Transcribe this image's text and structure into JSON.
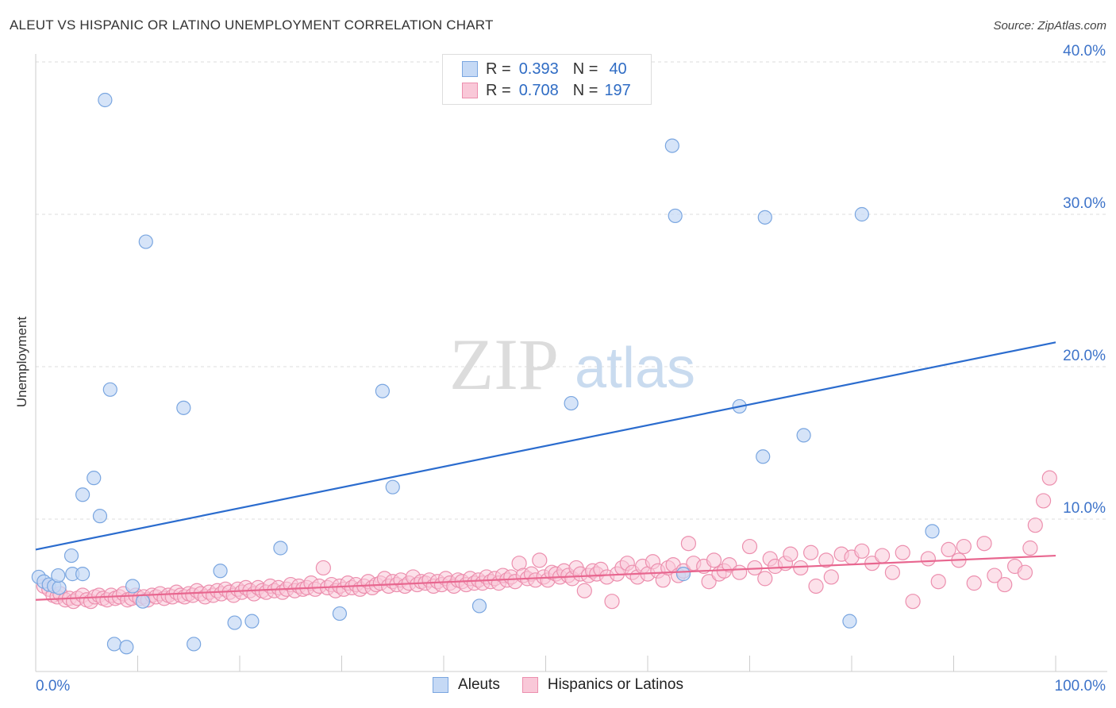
{
  "header": {
    "title": "ALEUT VS HISPANIC OR LATINO UNEMPLOYMENT CORRELATION CHART",
    "source": "Source: ZipAtlas.com"
  },
  "watermark": {
    "zip": "ZIP",
    "atlas": "atlas"
  },
  "legend": {
    "rows": [
      {
        "r_label": "R =",
        "r_value": "0.393",
        "n_label": "N =",
        "n_value": "40"
      },
      {
        "r_label": "R =",
        "r_value": "0.708",
        "n_label": "N =",
        "n_value": "197"
      }
    ]
  },
  "bottom_legend": [
    "Aleuts",
    "Hispanics or Latinos"
  ],
  "colors": {
    "blue_fill": "#c5d9f5",
    "blue_stroke": "#7aa6e0",
    "blue_line": "#2b6cce",
    "pink_fill": "#f9c8d8",
    "pink_stroke": "#ec8fae",
    "pink_line": "#e8668f",
    "axis_text": "#3d73c9",
    "grid": "#dddddd"
  },
  "chart_data": {
    "type": "scatter",
    "title": "ALEUT VS HISPANIC OR LATINO UNEMPLOYMENT CORRELATION CHART",
    "ylabel": "Unemployment",
    "xlabel": "",
    "xlim": [
      0,
      100
    ],
    "ylim": [
      0,
      40
    ],
    "x_tick_labels": [
      "0.0%",
      "100.0%"
    ],
    "y_ticks": [
      10,
      20,
      30,
      40
    ],
    "y_tick_labels": [
      "10.0%",
      "20.0%",
      "30.0%",
      "40.0%"
    ],
    "grid": true,
    "series": [
      {
        "name": "Aleuts",
        "r": 0.393,
        "n": 40,
        "trend": [
          [
            0,
            8.0
          ],
          [
            100,
            21.6
          ]
        ],
        "points": [
          [
            0.3,
            6.2
          ],
          [
            0.8,
            5.9
          ],
          [
            1.3,
            5.7
          ],
          [
            1.8,
            5.6
          ],
          [
            2.3,
            5.5
          ],
          [
            2.2,
            6.3
          ],
          [
            3.5,
            7.6
          ],
          [
            3.6,
            6.4
          ],
          [
            4.6,
            6.4
          ],
          [
            4.6,
            11.6
          ],
          [
            5.7,
            12.7
          ],
          [
            6.3,
            10.2
          ],
          [
            6.8,
            37.5
          ],
          [
            7.3,
            18.5
          ],
          [
            7.7,
            1.8
          ],
          [
            8.9,
            1.6
          ],
          [
            9.5,
            5.6
          ],
          [
            10.5,
            4.6
          ],
          [
            10.8,
            28.2
          ],
          [
            14.5,
            17.3
          ],
          [
            15.5,
            1.8
          ],
          [
            18.1,
            6.6
          ],
          [
            19.5,
            3.2
          ],
          [
            21.2,
            3.3
          ],
          [
            24.0,
            8.1
          ],
          [
            29.8,
            3.8
          ],
          [
            34.0,
            18.4
          ],
          [
            35.0,
            12.1
          ],
          [
            43.5,
            4.3
          ],
          [
            52.5,
            17.6
          ],
          [
            63.5,
            6.4
          ],
          [
            62.4,
            34.5
          ],
          [
            62.7,
            29.9
          ],
          [
            69.0,
            17.4
          ],
          [
            71.3,
            14.1
          ],
          [
            71.5,
            29.8
          ],
          [
            75.3,
            15.5
          ],
          [
            81.0,
            30.0
          ],
          [
            79.8,
            3.3
          ],
          [
            87.9,
            9.2
          ]
        ]
      },
      {
        "name": "Hispanics or Latinos",
        "r": 0.708,
        "n": 197,
        "trend": [
          [
            0,
            4.7
          ],
          [
            100,
            7.6
          ]
        ],
        "points": [
          [
            0.8,
            5.6
          ],
          [
            1.3,
            5.4
          ],
          [
            1.7,
            5.0
          ],
          [
            2.1,
            4.9
          ],
          [
            2.4,
            5.1
          ],
          [
            2.9,
            4.7
          ],
          [
            3.3,
            4.8
          ],
          [
            3.7,
            4.6
          ],
          [
            4.1,
            4.8
          ],
          [
            4.6,
            5.0
          ],
          [
            5.0,
            4.7
          ],
          [
            5.4,
            4.6
          ],
          [
            5.8,
            4.9
          ],
          [
            6.2,
            5.0
          ],
          [
            6.6,
            4.8
          ],
          [
            7.0,
            4.7
          ],
          [
            7.4,
            5.0
          ],
          [
            7.8,
            4.8
          ],
          [
            8.2,
            4.9
          ],
          [
            8.6,
            5.1
          ],
          [
            9.0,
            4.7
          ],
          [
            9.4,
            4.8
          ],
          [
            9.8,
            5.0
          ],
          [
            10.2,
            4.8
          ],
          [
            10.6,
            4.9
          ],
          [
            11.0,
            4.7
          ],
          [
            11.4,
            5.0
          ],
          [
            11.8,
            4.9
          ],
          [
            12.2,
            5.1
          ],
          [
            12.6,
            4.8
          ],
          [
            13.0,
            5.0
          ],
          [
            13.4,
            4.9
          ],
          [
            13.8,
            5.2
          ],
          [
            14.2,
            5.0
          ],
          [
            14.6,
            4.9
          ],
          [
            15.0,
            5.1
          ],
          [
            15.4,
            5.0
          ],
          [
            15.8,
            5.3
          ],
          [
            16.2,
            5.1
          ],
          [
            16.6,
            4.9
          ],
          [
            17.0,
            5.2
          ],
          [
            17.4,
            5.0
          ],
          [
            17.8,
            5.3
          ],
          [
            18.2,
            5.1
          ],
          [
            18.6,
            5.4
          ],
          [
            19.0,
            5.2
          ],
          [
            19.4,
            5.0
          ],
          [
            19.8,
            5.4
          ],
          [
            20.2,
            5.2
          ],
          [
            20.6,
            5.5
          ],
          [
            21.0,
            5.3
          ],
          [
            21.4,
            5.1
          ],
          [
            21.8,
            5.5
          ],
          [
            22.2,
            5.3
          ],
          [
            22.6,
            5.2
          ],
          [
            23.0,
            5.6
          ],
          [
            23.4,
            5.3
          ],
          [
            23.8,
            5.5
          ],
          [
            24.2,
            5.2
          ],
          [
            24.6,
            5.4
          ],
          [
            25.0,
            5.7
          ],
          [
            25.4,
            5.3
          ],
          [
            25.8,
            5.6
          ],
          [
            26.2,
            5.4
          ],
          [
            26.6,
            5.5
          ],
          [
            27.0,
            5.8
          ],
          [
            27.4,
            5.4
          ],
          [
            27.8,
            5.6
          ],
          [
            28.2,
            6.8
          ],
          [
            28.6,
            5.5
          ],
          [
            29.0,
            5.7
          ],
          [
            29.4,
            5.3
          ],
          [
            29.8,
            5.6
          ],
          [
            30.2,
            5.4
          ],
          [
            30.6,
            5.8
          ],
          [
            31.0,
            5.5
          ],
          [
            31.4,
            5.7
          ],
          [
            31.8,
            5.4
          ],
          [
            32.2,
            5.6
          ],
          [
            32.6,
            5.9
          ],
          [
            33.0,
            5.5
          ],
          [
            33.4,
            5.7
          ],
          [
            33.8,
            5.8
          ],
          [
            34.2,
            6.1
          ],
          [
            34.6,
            5.6
          ],
          [
            35.0,
            5.9
          ],
          [
            35.4,
            5.7
          ],
          [
            35.8,
            6.0
          ],
          [
            36.2,
            5.6
          ],
          [
            36.6,
            5.8
          ],
          [
            37.0,
            6.2
          ],
          [
            37.4,
            5.7
          ],
          [
            37.8,
            5.9
          ],
          [
            38.2,
            5.8
          ],
          [
            38.6,
            6.0
          ],
          [
            39.0,
            5.6
          ],
          [
            39.4,
            5.9
          ],
          [
            39.8,
            5.7
          ],
          [
            40.2,
            6.1
          ],
          [
            40.6,
            5.8
          ],
          [
            41.0,
            5.6
          ],
          [
            41.4,
            6.0
          ],
          [
            41.8,
            5.9
          ],
          [
            42.2,
            5.7
          ],
          [
            42.6,
            6.1
          ],
          [
            43.0,
            5.8
          ],
          [
            43.4,
            6.0
          ],
          [
            43.8,
            5.8
          ],
          [
            44.2,
            6.2
          ],
          [
            44.6,
            5.9
          ],
          [
            45.0,
            6.1
          ],
          [
            45.4,
            5.8
          ],
          [
            45.8,
            6.3
          ],
          [
            46.2,
            6.0
          ],
          [
            46.6,
            6.2
          ],
          [
            47.0,
            5.9
          ],
          [
            47.4,
            7.1
          ],
          [
            47.8,
            6.3
          ],
          [
            48.2,
            6.1
          ],
          [
            48.6,
            6.4
          ],
          [
            49.0,
            6.0
          ],
          [
            49.4,
            7.3
          ],
          [
            49.8,
            6.2
          ],
          [
            50.2,
            6.0
          ],
          [
            50.6,
            6.5
          ],
          [
            51.0,
            6.4
          ],
          [
            51.4,
            6.2
          ],
          [
            51.8,
            6.6
          ],
          [
            52.2,
            6.3
          ],
          [
            52.6,
            6.1
          ],
          [
            53.0,
            6.8
          ],
          [
            53.4,
            6.4
          ],
          [
            53.8,
            5.3
          ],
          [
            54.2,
            6.3
          ],
          [
            54.6,
            6.6
          ],
          [
            55.0,
            6.4
          ],
          [
            55.4,
            6.7
          ],
          [
            56.0,
            6.2
          ],
          [
            56.5,
            4.6
          ],
          [
            57.0,
            6.4
          ],
          [
            57.5,
            6.8
          ],
          [
            58.0,
            7.1
          ],
          [
            58.5,
            6.5
          ],
          [
            59.0,
            6.2
          ],
          [
            59.5,
            6.9
          ],
          [
            60.0,
            6.4
          ],
          [
            60.5,
            7.2
          ],
          [
            61.0,
            6.6
          ],
          [
            61.5,
            6.0
          ],
          [
            62.0,
            6.8
          ],
          [
            62.5,
            7.0
          ],
          [
            63.0,
            6.3
          ],
          [
            63.5,
            6.6
          ],
          [
            64.0,
            8.4
          ],
          [
            64.5,
            7.1
          ],
          [
            65.5,
            6.9
          ],
          [
            66.0,
            5.9
          ],
          [
            66.5,
            7.3
          ],
          [
            67.0,
            6.4
          ],
          [
            67.5,
            6.6
          ],
          [
            68.0,
            7.0
          ],
          [
            69.0,
            6.5
          ],
          [
            70.0,
            8.2
          ],
          [
            70.5,
            6.8
          ],
          [
            71.5,
            6.1
          ],
          [
            72.0,
            7.4
          ],
          [
            72.5,
            6.9
          ],
          [
            73.5,
            7.1
          ],
          [
            74.0,
            7.7
          ],
          [
            75.0,
            6.8
          ],
          [
            76.0,
            7.8
          ],
          [
            76.5,
            5.6
          ],
          [
            77.5,
            7.3
          ],
          [
            78.0,
            6.2
          ],
          [
            79.0,
            7.7
          ],
          [
            80.0,
            7.5
          ],
          [
            81.0,
            7.9
          ],
          [
            82.0,
            7.1
          ],
          [
            83.0,
            7.6
          ],
          [
            84.0,
            6.5
          ],
          [
            85.0,
            7.8
          ],
          [
            86.0,
            4.6
          ],
          [
            87.5,
            7.4
          ],
          [
            88.5,
            5.9
          ],
          [
            89.5,
            8.0
          ],
          [
            90.5,
            7.3
          ],
          [
            91.0,
            8.2
          ],
          [
            92.0,
            5.8
          ],
          [
            93.0,
            8.4
          ],
          [
            94.0,
            6.3
          ],
          [
            95.0,
            5.7
          ],
          [
            96.0,
            6.9
          ],
          [
            97.0,
            6.5
          ],
          [
            97.5,
            8.1
          ],
          [
            98.0,
            9.6
          ],
          [
            98.8,
            11.2
          ],
          [
            99.4,
            12.7
          ]
        ]
      }
    ]
  }
}
